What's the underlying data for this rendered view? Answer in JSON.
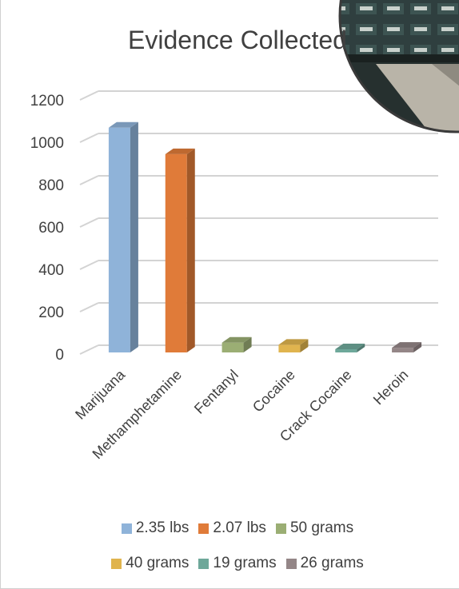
{
  "chart_data": {
    "type": "bar",
    "title": "Evidence Collected",
    "xlabel": "",
    "ylabel": "",
    "categories": [
      "Marijuana",
      "Methamphetamine",
      "Fentanyl",
      "Cocaine",
      "Crack Cocaine",
      "Heroin"
    ],
    "values": [
      1065,
      940,
      50,
      40,
      19,
      26
    ],
    "ylim": [
      0,
      1200
    ],
    "yticks": [
      0,
      200,
      400,
      600,
      800,
      1000,
      1200
    ],
    "grid": true,
    "legend_position": "bottom",
    "legend": [
      "2.35 lbs",
      "2.07 lbs",
      "50 grams",
      "40 grams",
      "19 grams",
      "26 grams"
    ],
    "colors": [
      "#8FB3D9",
      "#E07B39",
      "#9BAE74",
      "#E0B44E",
      "#6EA89A",
      "#948687"
    ]
  },
  "photo": {
    "icon": "evidence-room-photo-icon"
  }
}
